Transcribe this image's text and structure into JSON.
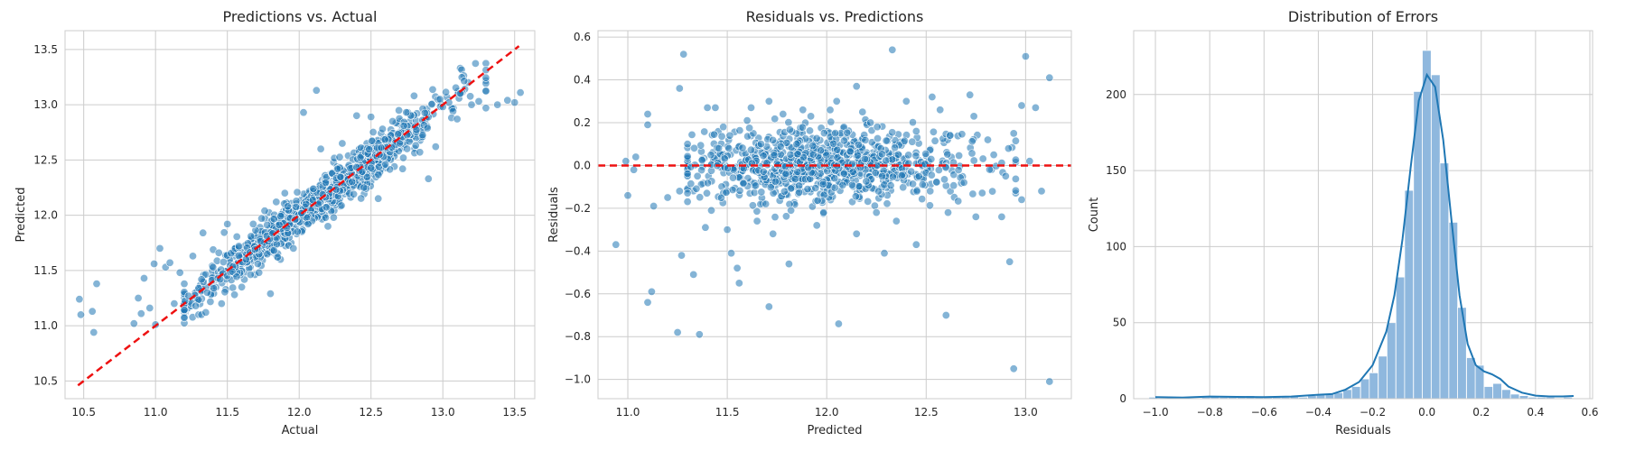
{
  "chart_data": [
    {
      "type": "scatter",
      "title": "Predictions vs. Actual",
      "xlabel": "Actual",
      "ylabel": "Predicted",
      "xlim": [
        10.37,
        13.64
      ],
      "ylim": [
        10.34,
        13.67
      ],
      "xticks": [
        10.5,
        11.0,
        11.5,
        12.0,
        12.5,
        13.0,
        13.5
      ],
      "xticklabels": [
        "10.5",
        "11.0",
        "11.5",
        "12.0",
        "12.5",
        "13.0",
        "13.5"
      ],
      "yticks": [
        10.5,
        11.0,
        11.5,
        12.0,
        12.5,
        13.0,
        13.5
      ],
      "yticklabels": [
        "10.5",
        "11.0",
        "11.5",
        "12.0",
        "12.5",
        "13.0",
        "13.5"
      ],
      "grid": true,
      "point_color": "#1f77b4",
      "reference_line": {
        "x": [
          10.46,
          13.53
        ],
        "y": [
          10.46,
          13.53
        ],
        "color": "#ee1111",
        "style": "dashed"
      },
      "points": [
        [
          10.47,
          11.24
        ],
        [
          10.48,
          11.1
        ],
        [
          10.56,
          11.13
        ],
        [
          10.57,
          10.94
        ],
        [
          10.59,
          11.38
        ],
        [
          10.85,
          11.02
        ],
        [
          10.88,
          11.25
        ],
        [
          10.9,
          11.11
        ],
        [
          10.92,
          11.43
        ],
        [
          10.96,
          11.16
        ],
        [
          10.99,
          11.56
        ],
        [
          11.0,
          11.01
        ],
        [
          11.03,
          11.7
        ],
        [
          11.07,
          11.53
        ],
        [
          11.1,
          11.57
        ],
        [
          11.13,
          11.2
        ],
        [
          11.17,
          11.48
        ],
        [
          11.2,
          11.38
        ],
        [
          11.23,
          11.27
        ],
        [
          11.26,
          11.63
        ],
        [
          11.28,
          11.18
        ],
        [
          11.3,
          11.1
        ],
        [
          11.32,
          11.1
        ],
        [
          11.33,
          11.84
        ],
        [
          11.35,
          11.12
        ],
        [
          11.36,
          11.3
        ],
        [
          11.4,
          11.53
        ],
        [
          11.44,
          11.66
        ],
        [
          11.46,
          11.2
        ],
        [
          11.5,
          11.92
        ],
        [
          11.55,
          11.28
        ],
        [
          11.63,
          11.6
        ],
        [
          11.68,
          11.92
        ],
        [
          11.72,
          11.48
        ],
        [
          11.76,
          12.04
        ],
        [
          11.8,
          11.29
        ],
        [
          11.84,
          12.12
        ],
        [
          11.9,
          12.2
        ],
        [
          11.96,
          11.7
        ],
        [
          12.03,
          12.93
        ],
        [
          12.12,
          13.13
        ],
        [
          12.15,
          12.6
        ],
        [
          12.24,
          11.98
        ],
        [
          12.3,
          12.65
        ],
        [
          12.38,
          12.19
        ],
        [
          12.5,
          12.89
        ],
        [
          12.55,
          12.15
        ],
        [
          12.6,
          12.46
        ],
        [
          12.72,
          12.42
        ],
        [
          12.8,
          13.08
        ],
        [
          12.84,
          12.57
        ],
        [
          12.9,
          12.33
        ],
        [
          12.95,
          12.62
        ],
        [
          13.0,
          12.98
        ],
        [
          13.1,
          12.87
        ],
        [
          13.2,
          13.0
        ],
        [
          13.3,
          12.97
        ],
        [
          13.38,
          13.0
        ],
        [
          13.5,
          13.02
        ],
        [
          13.54,
          13.11
        ],
        [
          13.12,
          13.1
        ],
        [
          12.98,
          13.05
        ],
        [
          13.25,
          13.03
        ],
        [
          13.45,
          13.04
        ],
        [
          12.4,
          12.9
        ],
        [
          12.65,
          12.85
        ],
        [
          11.6,
          11.35
        ],
        [
          11.45,
          11.42
        ],
        [
          11.3,
          11.34
        ],
        [
          12.2,
          11.9
        ],
        [
          12.45,
          12.25
        ],
        [
          12.7,
          12.65
        ],
        [
          11.85,
          11.62
        ],
        [
          11.58,
          11.72
        ]
      ]
    },
    {
      "type": "scatter",
      "title": "Residuals vs. Predictions",
      "xlabel": "Predicted",
      "ylabel": "Residuals",
      "xlim": [
        10.85,
        13.23
      ],
      "ylim": [
        -1.09,
        0.63
      ],
      "xticks": [
        11.0,
        11.5,
        12.0,
        12.5,
        13.0
      ],
      "xticklabels": [
        "11.0",
        "11.5",
        "12.0",
        "12.5",
        "13.0"
      ],
      "yticks": [
        -1.0,
        -0.8,
        -0.6,
        -0.4,
        -0.2,
        0.0,
        0.2,
        0.4,
        0.6
      ],
      "yticklabels": [
        "−1.0",
        "−0.8",
        "−0.6",
        "−0.4",
        "−0.2",
        "0.0",
        "0.2",
        "0.4",
        "0.6"
      ],
      "grid": true,
      "point_color": "#1f77b4",
      "reference_line": {
        "y": 0.0,
        "color": "#ee1111",
        "style": "dashed"
      },
      "points": [
        [
          10.94,
          -0.37
        ],
        [
          11.1,
          -0.64
        ],
        [
          11.12,
          -0.59
        ],
        [
          11.25,
          -0.78
        ],
        [
          11.36,
          -0.79
        ],
        [
          11.27,
          -0.42
        ],
        [
          11.33,
          -0.51
        ],
        [
          11.39,
          -0.29
        ],
        [
          11.52,
          -0.41
        ],
        [
          11.55,
          -0.48
        ],
        [
          11.56,
          -0.55
        ],
        [
          11.71,
          -0.66
        ],
        [
          11.81,
          -0.46
        ],
        [
          12.06,
          -0.74
        ],
        [
          12.6,
          -0.7
        ],
        [
          12.92,
          -0.45
        ],
        [
          12.94,
          -0.95
        ],
        [
          13.12,
          -1.01
        ],
        [
          11.28,
          0.52
        ],
        [
          12.33,
          0.54
        ],
        [
          13.0,
          0.51
        ],
        [
          13.12,
          0.41
        ],
        [
          11.26,
          0.36
        ],
        [
          11.1,
          0.24
        ],
        [
          11.1,
          0.19
        ],
        [
          11.4,
          0.27
        ],
        [
          11.71,
          0.3
        ],
        [
          12.15,
          0.37
        ],
        [
          12.4,
          0.3
        ],
        [
          12.72,
          0.33
        ],
        [
          12.53,
          0.32
        ],
        [
          12.57,
          0.26
        ],
        [
          12.98,
          0.28
        ],
        [
          13.05,
          0.27
        ],
        [
          12.74,
          0.23
        ],
        [
          11.44,
          0.27
        ],
        [
          11.62,
          0.27
        ],
        [
          10.99,
          0.02
        ],
        [
          11.03,
          -0.02
        ],
        [
          11.13,
          -0.19
        ],
        [
          11.0,
          -0.14
        ],
        [
          11.2,
          -0.15
        ],
        [
          11.04,
          0.04
        ],
        [
          11.3,
          0.1
        ],
        [
          11.35,
          -0.05
        ],
        [
          11.26,
          -0.12
        ],
        [
          12.15,
          -0.32
        ],
        [
          12.29,
          -0.41
        ],
        [
          12.45,
          -0.37
        ],
        [
          12.61,
          -0.22
        ],
        [
          12.75,
          -0.24
        ],
        [
          12.88,
          -0.24
        ],
        [
          12.98,
          -0.16
        ],
        [
          13.08,
          -0.12
        ],
        [
          13.02,
          0.02
        ],
        [
          12.94,
          0.15
        ],
        [
          12.81,
          0.12
        ],
        [
          11.95,
          -0.28
        ],
        [
          11.73,
          -0.32
        ],
        [
          11.82,
          -0.21
        ],
        [
          12.05,
          0.3
        ],
        [
          11.88,
          0.26
        ],
        [
          11.6,
          0.21
        ],
        [
          11.48,
          0.18
        ],
        [
          12.22,
          0.2
        ],
        [
          12.18,
          0.25
        ],
        [
          11.92,
          0.23
        ],
        [
          11.78,
          0.24
        ],
        [
          11.65,
          -0.26
        ],
        [
          11.5,
          -0.3
        ],
        [
          11.42,
          -0.21
        ],
        [
          12.25,
          -0.22
        ],
        [
          12.35,
          -0.26
        ],
        [
          12.52,
          -0.12
        ],
        [
          12.45,
          0.16
        ],
        [
          12.62,
          0.14
        ],
        [
          12.69,
          -0.08
        ],
        [
          12.84,
          0.05
        ],
        [
          12.9,
          -0.05
        ]
      ],
      "dense_cluster": {
        "x_range": [
          11.4,
          12.75
        ],
        "y_sd": 0.085,
        "n": 900,
        "seed": 7
      }
    },
    {
      "type": "histogram",
      "title": "Distribution of Errors",
      "xlabel": "Residuals",
      "ylabel": "Count",
      "xlim": [
        -1.08,
        0.61
      ],
      "ylim": [
        0,
        242
      ],
      "xticks": [
        -1.0,
        -0.8,
        -0.6,
        -0.4,
        -0.2,
        0.0,
        0.2,
        0.4,
        0.6
      ],
      "xticklabels": [
        "−1.0",
        "−0.8",
        "−0.6",
        "−0.4",
        "−0.2",
        "0.0",
        "0.2",
        "0.4",
        "0.6"
      ],
      "yticks": [
        0,
        50,
        100,
        150,
        200
      ],
      "yticklabels": [
        "0",
        "50",
        "100",
        "150",
        "200"
      ],
      "grid": true,
      "bar_color": "#8fb8de",
      "kde_color": "#1f77b4",
      "bin_width": 0.0325,
      "bins": [
        {
          "x": -1.008,
          "count": 1
        },
        {
          "x": -0.976,
          "count": 0
        },
        {
          "x": -0.943,
          "count": 1
        },
        {
          "x": -0.911,
          "count": 0
        },
        {
          "x": -0.878,
          "count": 0
        },
        {
          "x": -0.846,
          "count": 0
        },
        {
          "x": -0.813,
          "count": 1
        },
        {
          "x": -0.781,
          "count": 2
        },
        {
          "x": -0.748,
          "count": 1
        },
        {
          "x": -0.716,
          "count": 1
        },
        {
          "x": -0.683,
          "count": 1
        },
        {
          "x": -0.651,
          "count": 2
        },
        {
          "x": -0.618,
          "count": 1
        },
        {
          "x": -0.586,
          "count": 1
        },
        {
          "x": -0.553,
          "count": 1
        },
        {
          "x": -0.521,
          "count": 1
        },
        {
          "x": -0.488,
          "count": 2
        },
        {
          "x": -0.456,
          "count": 1
        },
        {
          "x": -0.423,
          "count": 2
        },
        {
          "x": -0.391,
          "count": 3
        },
        {
          "x": -0.358,
          "count": 3
        },
        {
          "x": -0.326,
          "count": 4
        },
        {
          "x": -0.293,
          "count": 6
        },
        {
          "x": -0.261,
          "count": 8
        },
        {
          "x": -0.228,
          "count": 13
        },
        {
          "x": -0.196,
          "count": 17
        },
        {
          "x": -0.163,
          "count": 28
        },
        {
          "x": -0.131,
          "count": 50
        },
        {
          "x": -0.098,
          "count": 80
        },
        {
          "x": -0.066,
          "count": 137
        },
        {
          "x": -0.033,
          "count": 202
        },
        {
          "x": -0.001,
          "count": 229
        },
        {
          "x": 0.032,
          "count": 213
        },
        {
          "x": 0.064,
          "count": 155
        },
        {
          "x": 0.097,
          "count": 116
        },
        {
          "x": 0.129,
          "count": 60
        },
        {
          "x": 0.162,
          "count": 27
        },
        {
          "x": 0.194,
          "count": 22
        },
        {
          "x": 0.227,
          "count": 8
        },
        {
          "x": 0.259,
          "count": 10
        },
        {
          "x": 0.292,
          "count": 6
        },
        {
          "x": 0.324,
          "count": 3
        },
        {
          "x": 0.357,
          "count": 2
        },
        {
          "x": 0.389,
          "count": 1
        },
        {
          "x": 0.422,
          "count": 1
        },
        {
          "x": 0.454,
          "count": 1
        },
        {
          "x": 0.487,
          "count": 0
        },
        {
          "x": 0.519,
          "count": 1
        }
      ],
      "kde": [
        [
          -1.0,
          1
        ],
        [
          -0.9,
          0.8
        ],
        [
          -0.8,
          1.4
        ],
        [
          -0.7,
          1.2
        ],
        [
          -0.6,
          1.0
        ],
        [
          -0.5,
          1.4
        ],
        [
          -0.45,
          2
        ],
        [
          -0.4,
          2.6
        ],
        [
          -0.35,
          3
        ],
        [
          -0.3,
          6
        ],
        [
          -0.25,
          11
        ],
        [
          -0.2,
          22
        ],
        [
          -0.15,
          44
        ],
        [
          -0.12,
          68
        ],
        [
          -0.09,
          105
        ],
        [
          -0.06,
          152
        ],
        [
          -0.03,
          196
        ],
        [
          0.0,
          213
        ],
        [
          0.03,
          205
        ],
        [
          0.06,
          170
        ],
        [
          0.09,
          118
        ],
        [
          0.12,
          68
        ],
        [
          0.15,
          36
        ],
        [
          0.18,
          22
        ],
        [
          0.21,
          18
        ],
        [
          0.24,
          16
        ],
        [
          0.27,
          13
        ],
        [
          0.3,
          8
        ],
        [
          0.35,
          4
        ],
        [
          0.4,
          2
        ],
        [
          0.45,
          1.5
        ],
        [
          0.5,
          1.5
        ],
        [
          0.54,
          1.8
        ]
      ]
    }
  ]
}
